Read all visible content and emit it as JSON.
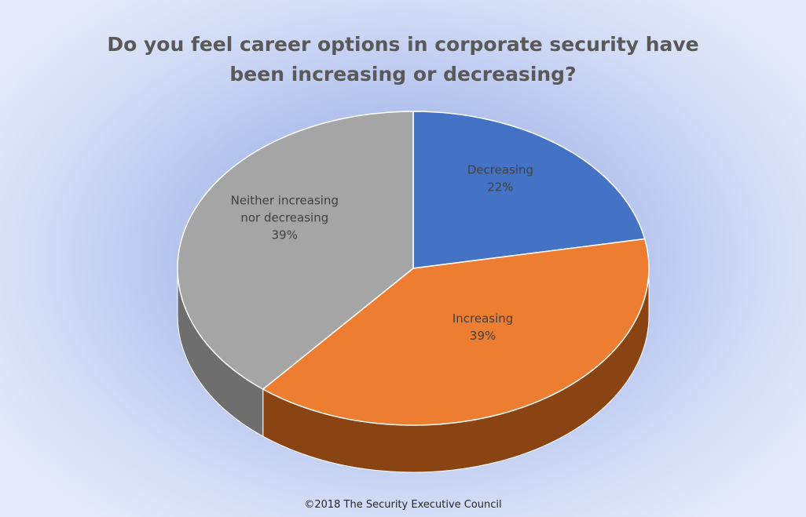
{
  "chart_data": {
    "type": "pie",
    "title": "Do you feel career options in corporate security have been increasing or decreasing?",
    "slices": [
      {
        "label": "Decreasing",
        "value": 22,
        "value_label": "22%",
        "color": "#4472c4",
        "side_color": "#2f528f"
      },
      {
        "label": "Increasing",
        "value": 39,
        "value_label": "39%",
        "color": "#ed7d31",
        "side_color": "#8a4414"
      },
      {
        "label": "Neither increasing nor decreasing",
        "value": 39,
        "value_label": "39%",
        "color": "#a5a5a5",
        "side_color": "#6e6e6e"
      }
    ],
    "legend": "none"
  },
  "footer": {
    "copyright": "©2018 The Security Executive Council"
  }
}
